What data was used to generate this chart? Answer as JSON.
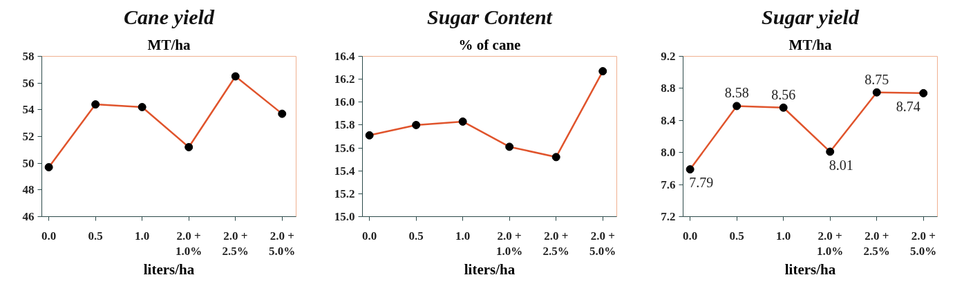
{
  "chart_data": [
    {
      "type": "line",
      "title": "Cane yield",
      "ylabel": "MT/ha",
      "xlabel": "liters/ha",
      "categories": [
        "0.0",
        "0.5",
        "1.0",
        "2.0 +\n1.0%",
        "2.0 +\n2.5%",
        "2.0 +\n5.0%"
      ],
      "series": [
        {
          "color": "#e0542c",
          "values": [
            49.7,
            54.4,
            54.2,
            51.2,
            56.5,
            53.7
          ]
        }
      ],
      "ylim": [
        46,
        58
      ],
      "yticks": [
        46,
        48,
        50,
        52,
        54,
        56,
        58
      ],
      "marker": "circle",
      "grid": false
    },
    {
      "type": "line",
      "title": "Sugar Content",
      "ylabel": "% of cane",
      "xlabel": "liters/ha",
      "categories": [
        "0.0",
        "0.5",
        "1.0",
        "2.0 +\n1.0%",
        "2.0 +\n2.5%",
        "2.0 +\n5.0%"
      ],
      "series": [
        {
          "color": "#e0542c",
          "values": [
            15.71,
            15.8,
            15.83,
            15.61,
            15.52,
            16.27
          ]
        }
      ],
      "ylim": [
        15.0,
        16.4
      ],
      "yticks": [
        {
          "value": 15.0,
          "label": "15.0"
        },
        15.2,
        15.4,
        15.6,
        15.8,
        {
          "value": 16.0,
          "label": "16.0"
        },
        16.2,
        16.4
      ],
      "marker": "circle",
      "grid": false
    },
    {
      "type": "line",
      "title": "Sugar yield",
      "ylabel": "MT/ha",
      "xlabel": "liters/ha",
      "categories": [
        "0.0",
        "0.5",
        "1.0",
        "2.0 +\n1.0%",
        "2.0 +\n2.5%",
        "2.0 +\n5.0%"
      ],
      "series": [
        {
          "color": "#e0542c",
          "values": [
            7.79,
            8.58,
            8.56,
            8.01,
            8.75,
            8.74
          ]
        }
      ],
      "ylim": [
        7.2,
        9.2
      ],
      "yticks": [
        7.2,
        7.6,
        {
          "value": 8.0,
          "label": "8.0"
        },
        8.4,
        8.8,
        9.2
      ],
      "marker": "circle",
      "grid": false,
      "data_labels": true
    }
  ]
}
